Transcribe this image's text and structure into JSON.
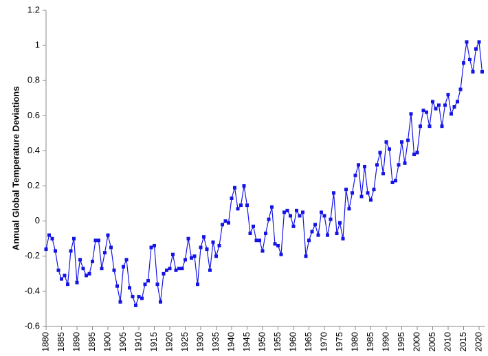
{
  "chart_data": {
    "type": "line",
    "y_label": "Annual Global Temperature Deviations",
    "x": [
      1880,
      1881,
      1882,
      1883,
      1884,
      1885,
      1886,
      1887,
      1888,
      1889,
      1890,
      1891,
      1892,
      1893,
      1894,
      1895,
      1896,
      1897,
      1898,
      1899,
      1900,
      1901,
      1902,
      1903,
      1904,
      1905,
      1906,
      1907,
      1908,
      1909,
      1910,
      1911,
      1912,
      1913,
      1914,
      1915,
      1916,
      1917,
      1918,
      1919,
      1920,
      1921,
      1922,
      1923,
      1924,
      1925,
      1926,
      1927,
      1928,
      1929,
      1930,
      1931,
      1932,
      1933,
      1934,
      1935,
      1936,
      1937,
      1938,
      1939,
      1940,
      1941,
      1942,
      1943,
      1944,
      1945,
      1946,
      1947,
      1948,
      1949,
      1950,
      1951,
      1952,
      1953,
      1954,
      1955,
      1956,
      1957,
      1958,
      1959,
      1960,
      1961,
      1962,
      1963,
      1964,
      1965,
      1966,
      1967,
      1968,
      1969,
      1970,
      1971,
      1972,
      1973,
      1974,
      1975,
      1976,
      1977,
      1978,
      1979,
      1980,
      1981,
      1982,
      1983,
      1984,
      1985,
      1986,
      1987,
      1988,
      1989,
      1990,
      1991,
      1992,
      1993,
      1994,
      1995,
      1996,
      1997,
      1998,
      1999,
      2000,
      2001,
      2002,
      2003,
      2004,
      2005,
      2006,
      2007,
      2008,
      2009,
      2010,
      2011,
      2012,
      2013,
      2014,
      2015,
      2016,
      2017,
      2018,
      2019,
      2020,
      2021
    ],
    "values": [
      -0.16,
      -0.08,
      -0.1,
      -0.17,
      -0.28,
      -0.33,
      -0.31,
      -0.36,
      -0.17,
      -0.1,
      -0.35,
      -0.22,
      -0.27,
      -0.31,
      -0.3,
      -0.23,
      -0.11,
      -0.11,
      -0.27,
      -0.18,
      -0.08,
      -0.15,
      -0.28,
      -0.37,
      -0.46,
      -0.26,
      -0.22,
      -0.38,
      -0.43,
      -0.48,
      -0.43,
      -0.44,
      -0.36,
      -0.34,
      -0.15,
      -0.14,
      -0.36,
      -0.46,
      -0.3,
      -0.28,
      -0.27,
      -0.19,
      -0.28,
      -0.27,
      -0.27,
      -0.22,
      -0.1,
      -0.21,
      -0.2,
      -0.36,
      -0.15,
      -0.09,
      -0.16,
      -0.28,
      -0.12,
      -0.2,
      -0.14,
      -0.02,
      0.0,
      -0.01,
      0.13,
      0.19,
      0.07,
      0.09,
      0.2,
      0.09,
      -0.07,
      -0.03,
      -0.11,
      -0.11,
      -0.17,
      -0.07,
      0.01,
      0.08,
      -0.13,
      -0.14,
      -0.19,
      0.05,
      0.06,
      0.03,
      -0.03,
      0.06,
      0.03,
      0.05,
      -0.2,
      -0.11,
      -0.06,
      -0.02,
      -0.08,
      0.05,
      0.03,
      -0.08,
      0.01,
      0.16,
      -0.07,
      -0.01,
      -0.1,
      0.18,
      0.07,
      0.16,
      0.26,
      0.32,
      0.14,
      0.31,
      0.16,
      0.12,
      0.18,
      0.32,
      0.39,
      0.27,
      0.45,
      0.41,
      0.22,
      0.23,
      0.32,
      0.45,
      0.33,
      0.46,
      0.61,
      0.38,
      0.39,
      0.54,
      0.63,
      0.62,
      0.54,
      0.68,
      0.64,
      0.66,
      0.54,
      0.66,
      0.72,
      0.61,
      0.65,
      0.68,
      0.75,
      0.9,
      1.02,
      0.92,
      0.85,
      0.98,
      1.02,
      0.85
    ],
    "color": "#1414e6",
    "xlim": [
      1880,
      2021
    ],
    "xticks": [
      1880,
      1885,
      1890,
      1895,
      1900,
      1905,
      1910,
      1915,
      1920,
      1925,
      1930,
      1935,
      1940,
      1945,
      1950,
      1955,
      1960,
      1965,
      1970,
      1975,
      1980,
      1985,
      1990,
      1995,
      2000,
      2005,
      2010,
      2015,
      2020
    ],
    "ylim": [
      -0.6,
      1.2
    ],
    "yticks": [
      -0.6,
      -0.4,
      -0.2,
      0,
      0.2,
      0.4,
      0.6,
      0.8,
      1,
      1.2
    ],
    "grid": false
  }
}
